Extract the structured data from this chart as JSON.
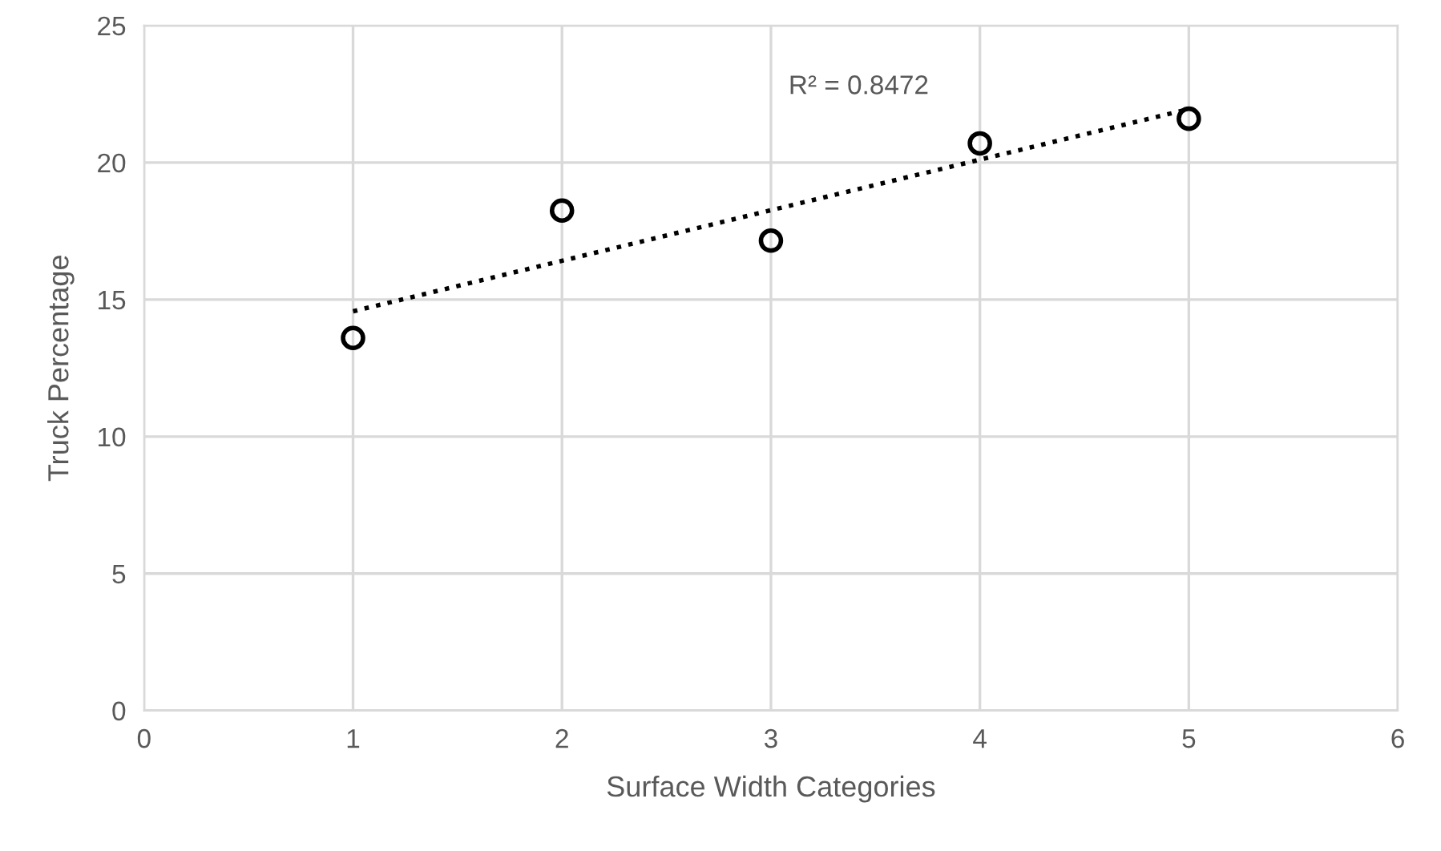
{
  "chart_data": {
    "type": "scatter",
    "xlabel": "Surface Width Categories",
    "ylabel": "Truck Percentage",
    "x": [
      1,
      2,
      3,
      4,
      5
    ],
    "series": [
      {
        "color": "#000000",
        "values": [
          13.6,
          18.25,
          17.15,
          20.7,
          21.6
        ],
        "marker": "circle"
      },
      {
        "type": "line",
        "color": "#000000",
        "x": [
          1,
          5
        ],
        "values": [
          14.57,
          21.95
        ],
        "line_style": "dotted",
        "marker": "none"
      }
    ],
    "annotations": [
      "R² = 0.8472"
    ],
    "xlim": [
      0,
      6
    ],
    "xticks": [
      0,
      1,
      2,
      3,
      4,
      5,
      6
    ],
    "ylim": [
      0,
      25
    ],
    "yticks": [
      0,
      5,
      10,
      15,
      20,
      25
    ],
    "grid": true,
    "legend": false
  }
}
